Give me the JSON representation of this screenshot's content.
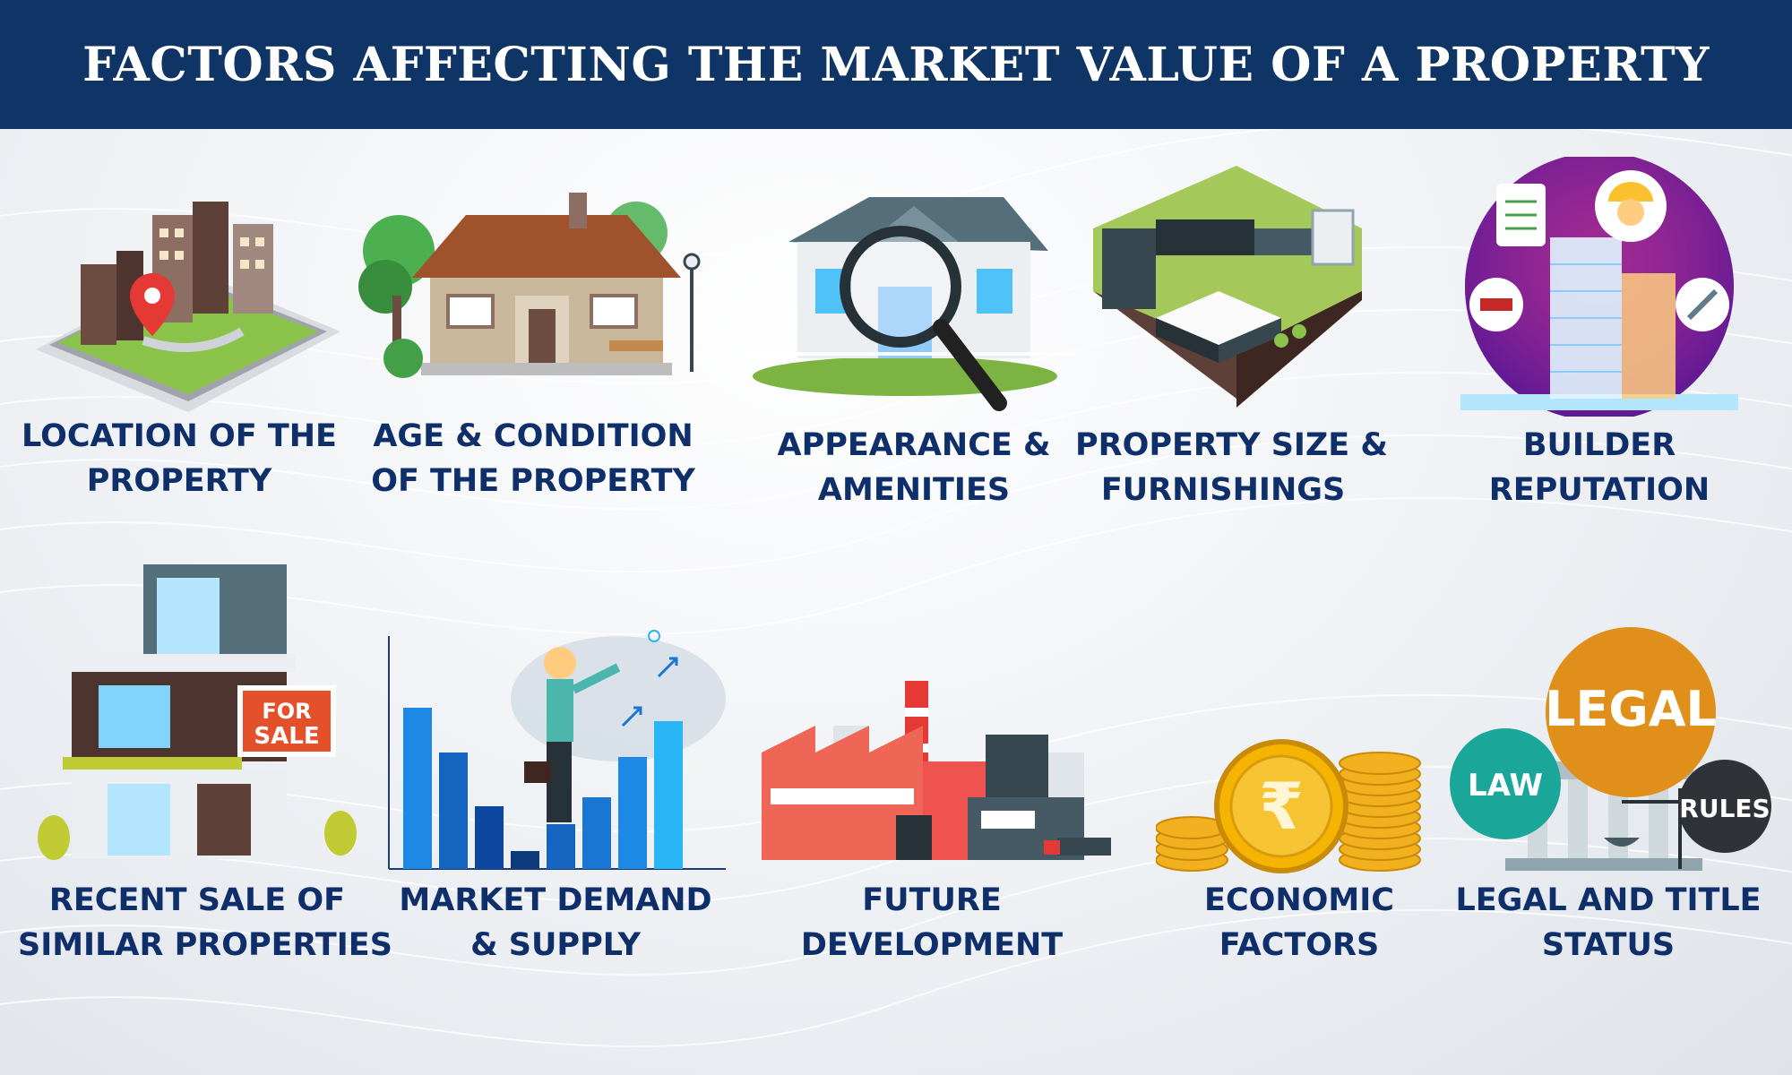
{
  "title": "FACTORS AFFECTING THE MARKET VALUE OF A PROPERTY",
  "factors": [
    {
      "line1": "LOCATION OF THE",
      "line2": "PROPERTY"
    },
    {
      "line1": "AGE & CONDITION",
      "line2": "OF THE  PROPERTY"
    },
    {
      "line1": "APPEARANCE &",
      "line2": "AMENITIES"
    },
    {
      "line1": "PROPERTY SIZE &",
      "line2": "FURNISHINGS"
    },
    {
      "line1": "BUILDER",
      "line2": "REPUTATION"
    },
    {
      "line1": "RECENT SALE OF",
      "line2": "SIMILAR PROPERTIES"
    },
    {
      "line1": "MARKET DEMAND",
      "line2": "& SUPPLY"
    },
    {
      "line1": "FUTURE",
      "line2": "DEVELOPMENT"
    },
    {
      "line1": "ECONOMIC",
      "line2": "FACTORS"
    },
    {
      "line1": "LEGAL AND TITLE",
      "line2": "STATUS"
    }
  ],
  "art_text": {
    "for_sale_1": "FOR",
    "for_sale_2": "SALE",
    "rupee": "₹",
    "legal": "LEGAL",
    "law": "LAW",
    "rules": "RULES"
  },
  "colors": {
    "header_bg": "#0f3466",
    "label_text": "#0f2f6a",
    "for_sale_sign": "#e4502a",
    "legal_bubble": "#e0901a",
    "law_bubble": "#1aa79a",
    "rules_bubble": "#2f3338",
    "coin_gold": "#f2b01e"
  }
}
